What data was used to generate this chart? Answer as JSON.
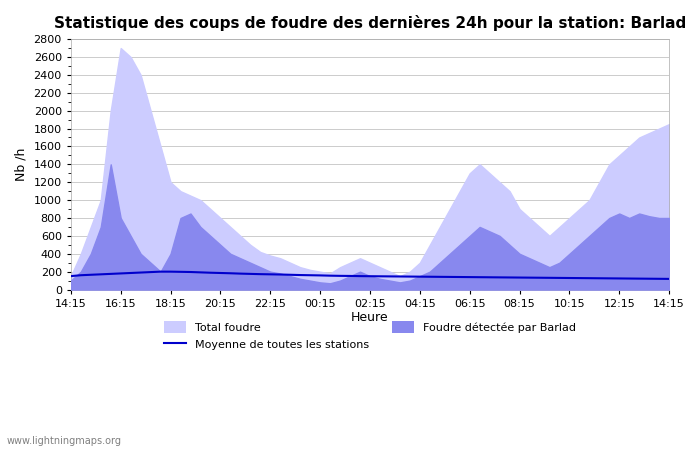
{
  "title": "Statistique des coups de foudre des dernières 24h pour la station: Barlad",
  "xlabel": "Heure",
  "ylabel": "Nb /h",
  "ylim": [
    0,
    2800
  ],
  "background_color": "#ffffff",
  "grid_color": "#cccccc",
  "watermark": "www.lightningmaps.org",
  "xtick_labels": [
    "14:15",
    "16:15",
    "18:15",
    "20:15",
    "22:15",
    "00:15",
    "02:15",
    "04:15",
    "06:15",
    "08:15",
    "10:15",
    "12:15",
    "14:15"
  ],
  "color_total": "#ccccff",
  "color_barlad": "#8888ee",
  "color_mean": "#0000cc",
  "total_foudre": [
    150,
    400,
    700,
    1000,
    2000,
    2700,
    2600,
    2400,
    2000,
    1600,
    1200,
    1100,
    1050,
    1000,
    900,
    800,
    700,
    600,
    500,
    420,
    380,
    350,
    300,
    250,
    220,
    200,
    180,
    250,
    300,
    350,
    300,
    250,
    200,
    150,
    200,
    300,
    500,
    700,
    900,
    1100,
    1300,
    1400,
    1300,
    1200,
    1100,
    900,
    800,
    700,
    600,
    700,
    800,
    900,
    1000,
    1200,
    1400,
    1500,
    1600,
    1700,
    1750,
    1800,
    1850
  ],
  "foudre_barlad": [
    100,
    200,
    400,
    700,
    1400,
    800,
    600,
    400,
    300,
    200,
    400,
    800,
    850,
    700,
    600,
    500,
    400,
    350,
    300,
    250,
    200,
    180,
    150,
    120,
    100,
    80,
    70,
    100,
    150,
    200,
    150,
    120,
    100,
    80,
    100,
    150,
    200,
    300,
    400,
    500,
    600,
    700,
    650,
    600,
    500,
    400,
    350,
    300,
    250,
    300,
    400,
    500,
    600,
    700,
    800,
    850,
    800,
    850,
    820,
    800,
    800
  ],
  "mean_line": [
    150,
    160,
    165,
    170,
    175,
    180,
    185,
    190,
    195,
    200,
    200,
    198,
    196,
    192,
    188,
    185,
    182,
    178,
    175,
    172,
    170,
    168,
    165,
    162,
    160,
    158,
    155,
    153,
    152,
    150,
    149,
    148,
    147,
    146,
    145,
    144,
    143,
    142,
    141,
    140,
    139,
    138,
    137,
    136,
    135,
    134,
    133,
    132,
    131,
    130,
    129,
    128,
    127,
    126,
    125,
    124,
    123,
    122,
    121,
    120,
    119
  ]
}
